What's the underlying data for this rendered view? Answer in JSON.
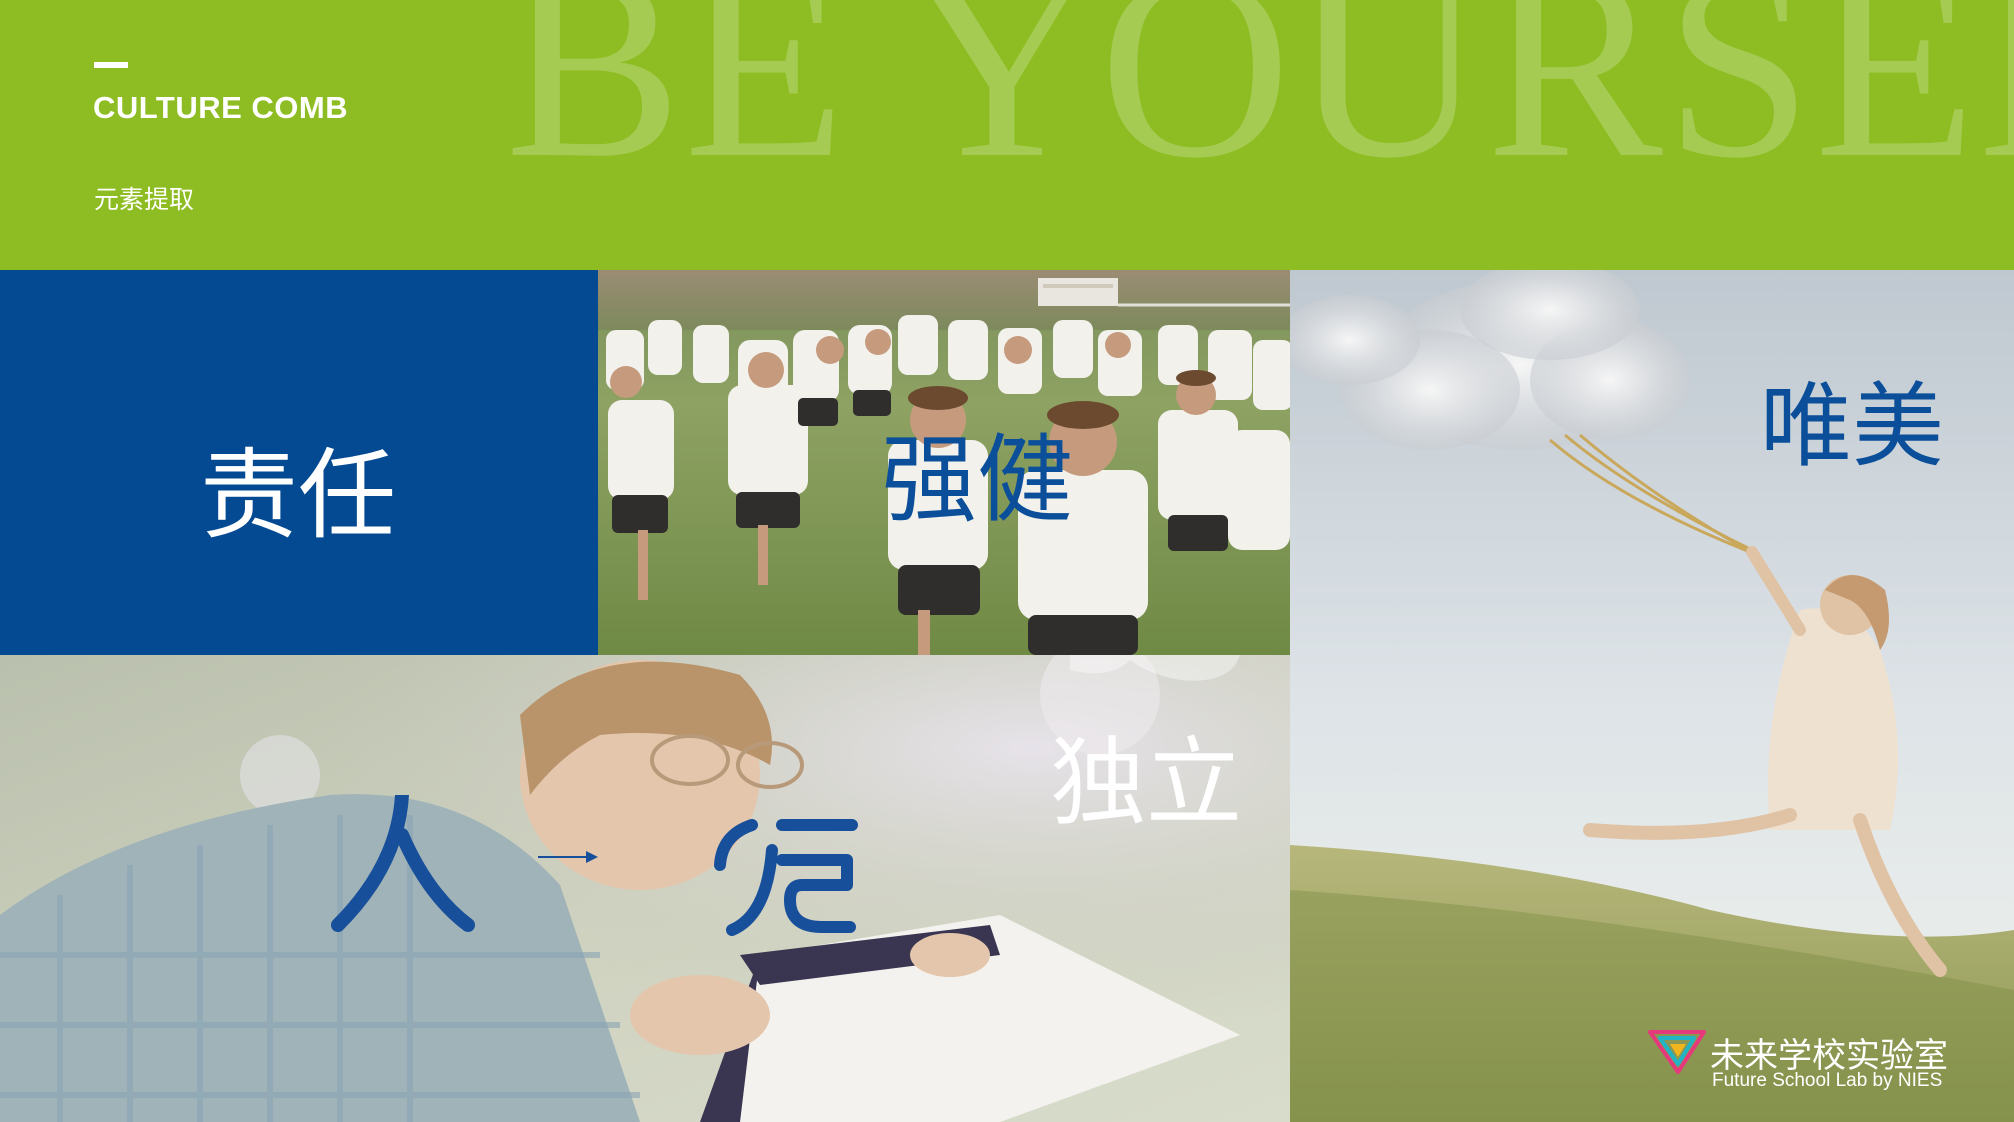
{
  "header": {
    "watermark": "BE YOURSELF",
    "title": "CULTURE COMB",
    "subtitle": "元素提取"
  },
  "tiles": {
    "responsibility": {
      "label": "责任"
    },
    "strong": {
      "label": "强健"
    },
    "independent": {
      "label": "独立"
    },
    "beauty": {
      "label": "唯美"
    }
  },
  "logo": {
    "name_cn": "未来学校实验室",
    "name_en": "Future School Lab by NIES"
  },
  "colors": {
    "header_green": "#8dbd22",
    "brand_blue": "#034a92",
    "label_blue": "#0b4f9a",
    "white": "#ffffff"
  },
  "icons": [
    "ren-glyph-graphic",
    "xin-glyph-graphic",
    "future-school-lab-logo-mark"
  ]
}
